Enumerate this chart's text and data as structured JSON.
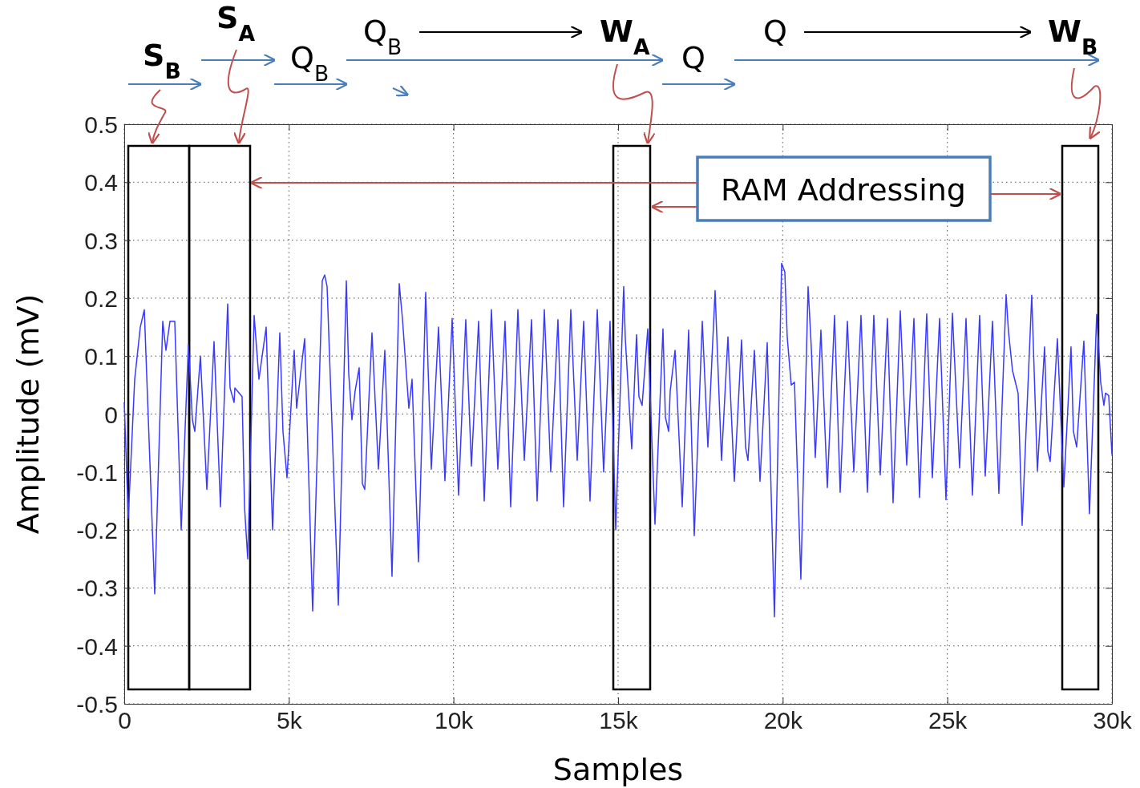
{
  "chart_data": {
    "type": "line",
    "xlabel": "Samples",
    "ylabel": "Amplitude (mV)",
    "xlim": [
      0,
      30000
    ],
    "ylim": [
      -0.5,
      0.5
    ],
    "xticks": [
      0,
      {
        "value": 5000,
        "label": "5k"
      },
      {
        "value": 10000,
        "label": "10k"
      },
      {
        "value": 15000,
        "label": "15k"
      },
      {
        "value": 20000,
        "label": "20k"
      },
      {
        "value": 25000,
        "label": "25k"
      },
      {
        "value": 30000,
        "label": "30k"
      }
    ],
    "yticks": [
      -0.5,
      -0.4,
      -0.3,
      -0.2,
      -0.1,
      0,
      0.1,
      0.2,
      0.3,
      0.4,
      0.5
    ],
    "grid": true,
    "line_style": "solid",
    "marker": "none",
    "annotations": [
      "S$_{B}$",
      "S$_{A}$",
      "Q$_{B}$",
      "Q$_{B}$",
      "W$_{A}$",
      "Q",
      "Q",
      "W$_{B}$",
      "RAM Addressing"
    ],
    "series": [
      {
        "color": "#3a3aff",
        "x": [
          0,
          122,
          317,
          487,
          609,
          925,
          1169,
          1266,
          1388,
          1534,
          1729,
          1948,
          2070,
          2143,
          2313,
          2508,
          2727,
          2922,
          3141,
          3214,
          3336,
          3360,
          3579,
          3653,
          3750,
          3945,
          4091,
          4310,
          4505,
          4724,
          4821,
          4943,
          5162,
          5235,
          5479,
          5722,
          6014,
          6087,
          6161,
          6502,
          6745,
          6818,
          6915,
          7013,
          7135,
          7232,
          7305,
          7524,
          7719,
          7914,
          8133,
          8352,
          8449,
          8644,
          8742,
          8936,
          9156,
          9326,
          9545,
          9740,
          9960,
          10154,
          10373,
          10544,
          10763,
          10933,
          11152,
          11347,
          11566,
          11737,
          11956,
          12151,
          12370,
          12540,
          12759,
          12954,
          13173,
          13344,
          13563,
          13758,
          13953,
          14147,
          14367,
          14561,
          14756,
          14927,
          15170,
          15219,
          15414,
          15560,
          15633,
          15730,
          15901,
          16120,
          16363,
          16436,
          16534,
          16583,
          16729,
          16948,
          17142,
          17313,
          17557,
          17727,
          17946,
          18141,
          18336,
          18530,
          18750,
          18871,
          18944,
          19139,
          19310,
          19529,
          19748,
          19967,
          20064,
          20137,
          20259,
          20357,
          20551,
          20771,
          20868,
          20990,
          21160,
          21355,
          21574,
          21745,
          21964,
          22159,
          22378,
          22572,
          22767,
          22962,
          23181,
          23352,
          23571,
          23766,
          23985,
          24155,
          24374,
          24545,
          24764,
          24959,
          25154,
          25373,
          25568,
          25762,
          25981,
          26152,
          26371,
          26566,
          26785,
          26858,
          26980,
          27150,
          27272,
          27564,
          27735,
          27954,
          28051,
          28124,
          28343,
          28538,
          28757,
          28830,
          28928,
          29147,
          29317,
          29537,
          29659,
          29756,
          29805,
          29902,
          30000
        ],
        "values": [
          0.02,
          -0.18,
          0.06,
          0.15,
          0.18,
          -0.31,
          0.16,
          0.11,
          0.16,
          0.16,
          -0.2,
          0.12,
          -0.01,
          -0.03,
          0.1,
          -0.13,
          0.125,
          -0.16,
          0.19,
          0.045,
          0.02,
          0.045,
          0.03,
          -0.16,
          -0.25,
          0.17,
          0.06,
          0.15,
          -0.2,
          0.14,
          -0.03,
          -0.11,
          0.11,
          0.01,
          0.13,
          -0.34,
          0.23,
          0.24,
          0.22,
          -0.33,
          0.23,
          0.07,
          -0.01,
          0.04,
          0.08,
          -0.12,
          -0.13,
          0.14,
          -0.095,
          0.11,
          -0.28,
          0.225,
          0.165,
          0.01,
          0.06,
          -0.255,
          0.21,
          -0.095,
          0.15,
          -0.115,
          0.165,
          -0.14,
          0.163,
          -0.09,
          0.16,
          -0.15,
          0.18,
          -0.095,
          0.16,
          -0.16,
          0.18,
          -0.08,
          0.163,
          -0.15,
          0.18,
          -0.1,
          0.163,
          -0.16,
          0.18,
          -0.08,
          0.16,
          -0.15,
          0.18,
          -0.1,
          0.16,
          -0.2,
          0.22,
          0.13,
          -0.06,
          0.137,
          0.03,
          0.015,
          0.147,
          -0.19,
          0.147,
          -0.005,
          -0.03,
          0.04,
          0.11,
          -0.16,
          0.145,
          -0.21,
          0.16,
          -0.057,
          0.213,
          -0.08,
          0.133,
          -0.116,
          0.128,
          -0.057,
          -0.08,
          0.11,
          -0.116,
          0.123,
          -0.35,
          0.26,
          0.245,
          0.133,
          0.05,
          0.055,
          -0.285,
          0.22,
          0.115,
          -0.075,
          0.145,
          -0.127,
          0.17,
          -0.135,
          0.16,
          -0.1,
          0.17,
          -0.135,
          0.17,
          -0.105,
          0.165,
          -0.153,
          0.178,
          -0.088,
          0.165,
          -0.144,
          0.173,
          -0.11,
          0.165,
          -0.148,
          0.174,
          -0.093,
          0.165,
          -0.14,
          0.17,
          -0.107,
          0.16,
          -0.137,
          0.206,
          0.142,
          0.075,
          0.036,
          -0.192,
          0.205,
          -0.098,
          0.116,
          -0.064,
          -0.082,
          0.13,
          -0.126,
          0.116,
          -0.03,
          -0.057,
          0.126,
          -0.172,
          0.172,
          0.054,
          0.015,
          0.036,
          0.032,
          -0.07
        ]
      }
    ]
  }
}
